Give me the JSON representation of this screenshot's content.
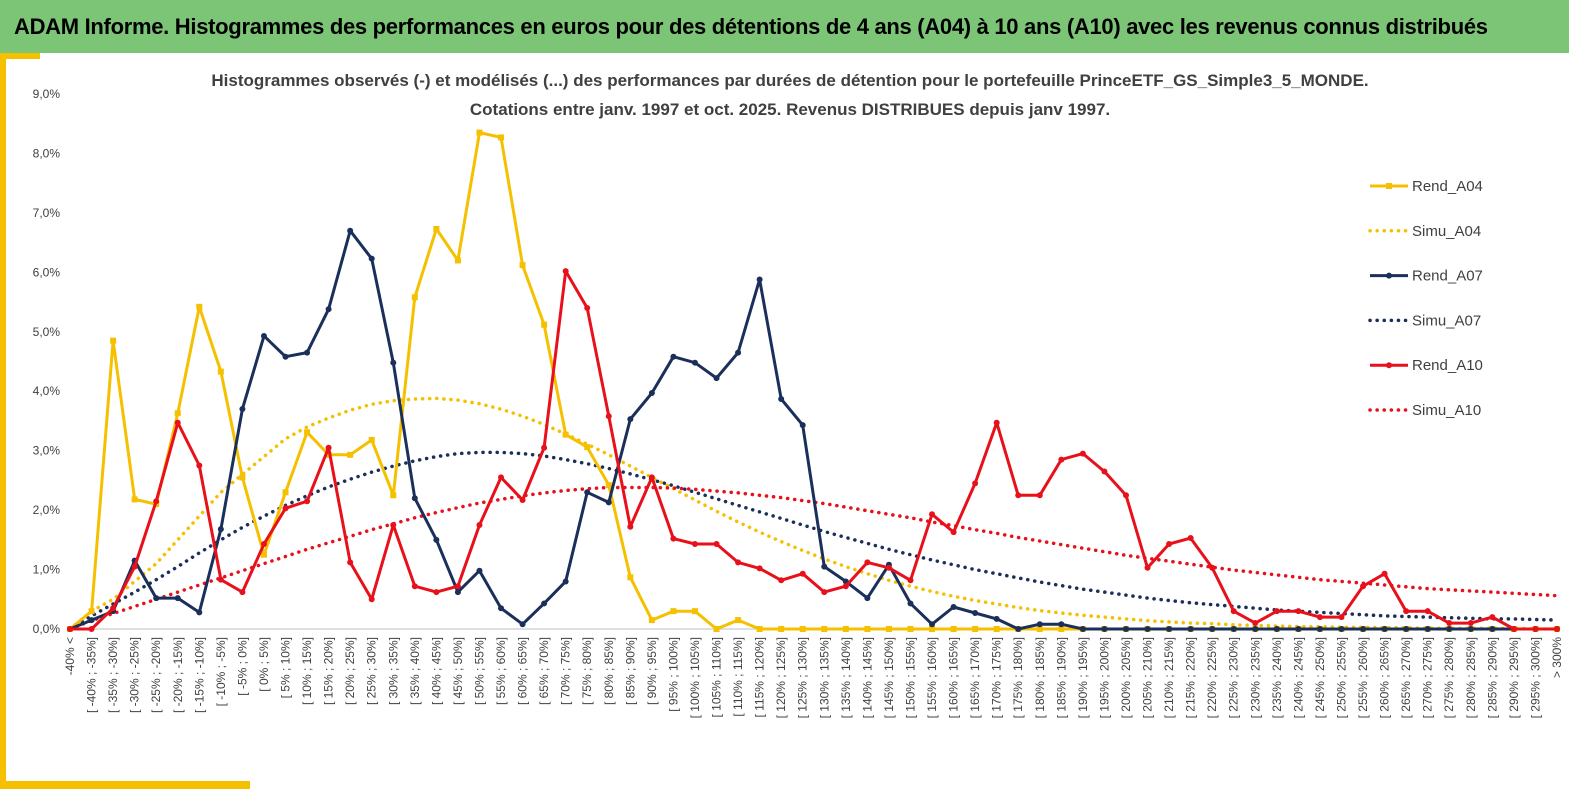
{
  "banner": {
    "title": "ADAM Informe. Histogrammes des performances en euros pour des détentions de 4 ans (A04) à 10 ans (A10) avec les revenus connus distribués"
  },
  "chart_data": {
    "type": "line",
    "title": "Histogrammes observés (-) et modélisés (...) des performances par durées de détention pour le portefeuille PrinceETF_GS_Simple3_5_MONDE.",
    "subtitle": "Cotations entre janv. 1997 et oct. 2025. Revenus DISTRIBUES depuis janv 1997.",
    "ylim": [
      0,
      9
    ],
    "yticks": [
      "0,0%",
      "1,0%",
      "2,0%",
      "3,0%",
      "4,0%",
      "5,0%",
      "6,0%",
      "7,0%",
      "8,0%",
      "9,0%"
    ],
    "grid": false,
    "legend_position": "right",
    "categories": [
      "-40% <",
      "[ -40% ; -35%]",
      "[ -35% ; -30%]",
      "[ -30% ; -25%]",
      "[ -25% ; -20%]",
      "[ -20% ; -15%]",
      "[ -15% ; -10%]",
      "[ -10% ; -5%]",
      "[ -5% ; 0%]",
      "[ 0% ; 5%]",
      "[ 5% ; 10%]",
      "[ 10% ; 15%]",
      "[ 15% ; 20%]",
      "[ 20% ; 25%]",
      "[ 25% ; 30%]",
      "[ 30% ; 35%]",
      "[ 35% ; 40%]",
      "[ 40% ; 45%]",
      "[ 45% ; 50%]",
      "[ 50% ; 55%]",
      "[ 55% ; 60%]",
      "[ 60% ; 65%]",
      "[ 65% ; 70%]",
      "[ 70% ; 75%]",
      "[ 75% ; 80%]",
      "[ 80% ; 85%]",
      "[ 85% ; 90%]",
      "[ 90% ; 95%]",
      "[ 95% ; 100%]",
      "[ 100% ; 105%]",
      "[ 105% ; 110%]",
      "[ 110% ; 115%]",
      "[ 115% ; 120%]",
      "[ 120% ; 125%]",
      "[ 125% ; 130%]",
      "[ 130% ; 135%]",
      "[ 135% ; 140%]",
      "[ 140% ; 145%]",
      "[ 145% ; 150%]",
      "[ 150% ; 155%]",
      "[ 155% ; 160%]",
      "[ 160% ; 165%]",
      "[ 165% ; 170%]",
      "[ 170% ; 175%]",
      "[ 175% ; 180%]",
      "[ 180% ; 185%]",
      "[ 185% ; 190%]",
      "[ 190% ; 195%]",
      "[ 195% ; 200%]",
      "[ 200% ; 205%]",
      "[ 205% ; 210%]",
      "[ 210% ; 215%]",
      "[ 215% ; 220%]",
      "[ 220% ; 225%]",
      "[ 225% ; 230%]",
      "[ 230% ; 235%]",
      "[ 235% ; 240%]",
      "[ 240% ; 245%]",
      "[ 245% ; 250%]",
      "[ 250% ; 255%]",
      "[ 255% ; 260%]",
      "[ 260% ; 265%]",
      "[ 265% ; 270%]",
      "[ 270% ; 275%]",
      "[ 275% ; 280%]",
      "[ 280% ; 285%]",
      "[ 285% ; 290%]",
      "[ 290% ; 295%]",
      "[ 295% ; 300%]",
      "> 300%"
    ],
    "series": [
      {
        "name": "Rend_A04",
        "color": "#f5c000",
        "style": "solid",
        "marker": "square",
        "values": [
          0,
          0.3,
          4.85,
          2.18,
          2.1,
          3.63,
          5.42,
          4.33,
          2.55,
          1.25,
          2.3,
          3.31,
          2.93,
          2.93,
          3.18,
          2.25,
          5.58,
          6.73,
          6.2,
          8.35,
          8.27,
          6.12,
          5.12,
          3.27,
          3.06,
          2.42,
          0.87,
          0.15,
          0.3,
          0.3,
          0.0,
          0.15,
          0.0,
          0,
          0,
          0,
          0,
          0,
          0,
          0,
          0,
          0,
          0,
          0,
          0,
          0,
          0,
          0,
          0,
          0,
          0,
          0,
          0,
          0,
          0,
          0,
          0,
          0,
          0,
          0,
          0,
          0,
          0,
          0,
          0,
          0,
          0,
          0,
          0,
          0
        ]
      },
      {
        "name": "Simu_A04",
        "color": "#f5c000",
        "style": "dotted",
        "values": [
          0.0,
          0.3,
          0.5,
          0.8,
          1.1,
          1.5,
          1.9,
          2.3,
          2.6,
          2.9,
          3.2,
          3.4,
          3.55,
          3.68,
          3.78,
          3.84,
          3.87,
          3.88,
          3.85,
          3.79,
          3.7,
          3.58,
          3.44,
          3.28,
          3.11,
          2.93,
          2.74,
          2.55,
          2.36,
          2.17,
          1.98,
          1.8,
          1.63,
          1.47,
          1.32,
          1.18,
          1.05,
          0.93,
          0.82,
          0.72,
          0.63,
          0.55,
          0.48,
          0.42,
          0.36,
          0.31,
          0.27,
          0.23,
          0.2,
          0.17,
          0.14,
          0.12,
          0.1,
          0.09,
          0.07,
          0.06,
          0.05,
          0.04,
          0.04,
          0.03,
          0.03,
          0.02,
          0.02,
          0.01,
          0.01,
          0.01,
          0.01,
          0.01,
          0.0,
          0.0
        ]
      },
      {
        "name": "Rend_A07",
        "color": "#1a2f5a",
        "style": "solid",
        "marker": "circle",
        "values": [
          0,
          0.15,
          0.3,
          1.15,
          0.52,
          0.52,
          0.28,
          1.68,
          3.7,
          4.93,
          4.58,
          4.65,
          5.38,
          6.7,
          6.23,
          4.48,
          2.2,
          1.5,
          0.62,
          0.98,
          0.35,
          0.08,
          0.43,
          0.8,
          2.3,
          2.13,
          3.53,
          3.97,
          4.58,
          4.48,
          4.22,
          4.65,
          5.88,
          3.87,
          3.43,
          1.05,
          0.8,
          0.52,
          1.08,
          0.43,
          0.08,
          0.37,
          0.27,
          0.17,
          0.0,
          0.08,
          0.08,
          0.0,
          0,
          0,
          0,
          0,
          0,
          0,
          0,
          0,
          0,
          0,
          0,
          0,
          0,
          0,
          0,
          0,
          0,
          0,
          0,
          0,
          0,
          0
        ]
      },
      {
        "name": "Simu_A07",
        "color": "#1a2f5a",
        "style": "dotted",
        "values": [
          0.0,
          0.22,
          0.42,
          0.62,
          0.83,
          1.05,
          1.28,
          1.5,
          1.71,
          1.9,
          2.08,
          2.24,
          2.39,
          2.52,
          2.64,
          2.74,
          2.83,
          2.9,
          2.95,
          2.97,
          2.97,
          2.95,
          2.91,
          2.85,
          2.78,
          2.7,
          2.61,
          2.51,
          2.41,
          2.3,
          2.19,
          2.08,
          1.97,
          1.86,
          1.75,
          1.64,
          1.54,
          1.44,
          1.34,
          1.25,
          1.16,
          1.08,
          1.0,
          0.93,
          0.86,
          0.79,
          0.73,
          0.67,
          0.62,
          0.57,
          0.52,
          0.48,
          0.44,
          0.41,
          0.38,
          0.35,
          0.32,
          0.3,
          0.28,
          0.26,
          0.24,
          0.22,
          0.21,
          0.2,
          0.19,
          0.18,
          0.17,
          0.17,
          0.16,
          0.15
        ]
      },
      {
        "name": "Rend_A10",
        "color": "#e8101a",
        "style": "solid",
        "marker": "circle",
        "values": [
          0,
          0.0,
          0.35,
          1.05,
          2.15,
          3.47,
          2.75,
          0.83,
          0.62,
          1.43,
          2.03,
          2.15,
          3.05,
          1.12,
          0.5,
          1.75,
          0.72,
          0.62,
          0.72,
          1.75,
          2.55,
          2.17,
          3.05,
          6.02,
          5.4,
          3.58,
          1.72,
          2.55,
          1.52,
          1.43,
          1.43,
          1.12,
          1.02,
          0.82,
          0.93,
          0.62,
          0.72,
          1.12,
          1.03,
          0.82,
          1.93,
          1.63,
          2.45,
          3.47,
          2.25,
          2.25,
          2.85,
          2.95,
          2.65,
          2.25,
          1.03,
          1.43,
          1.53,
          1.03,
          0.3,
          0.1,
          0.3,
          0.3,
          0.2,
          0.2,
          0.72,
          0.93,
          0.3,
          0.3,
          0.1,
          0.1,
          0.2,
          0.0,
          0.0,
          0.0
        ]
      },
      {
        "name": "Simu_A10",
        "color": "#e8101a",
        "style": "dotted",
        "values": [
          0.0,
          0.14,
          0.26,
          0.38,
          0.5,
          0.62,
          0.74,
          0.86,
          0.98,
          1.1,
          1.22,
          1.34,
          1.45,
          1.56,
          1.67,
          1.77,
          1.87,
          1.96,
          2.04,
          2.12,
          2.18,
          2.24,
          2.29,
          2.33,
          2.36,
          2.38,
          2.38,
          2.38,
          2.37,
          2.35,
          2.32,
          2.29,
          2.25,
          2.21,
          2.16,
          2.11,
          2.05,
          1.99,
          1.93,
          1.87,
          1.8,
          1.74,
          1.67,
          1.61,
          1.54,
          1.48,
          1.42,
          1.36,
          1.3,
          1.24,
          1.19,
          1.14,
          1.09,
          1.04,
          0.99,
          0.95,
          0.91,
          0.87,
          0.83,
          0.8,
          0.77,
          0.74,
          0.71,
          0.68,
          0.66,
          0.64,
          0.62,
          0.6,
          0.58,
          0.56
        ]
      }
    ]
  }
}
